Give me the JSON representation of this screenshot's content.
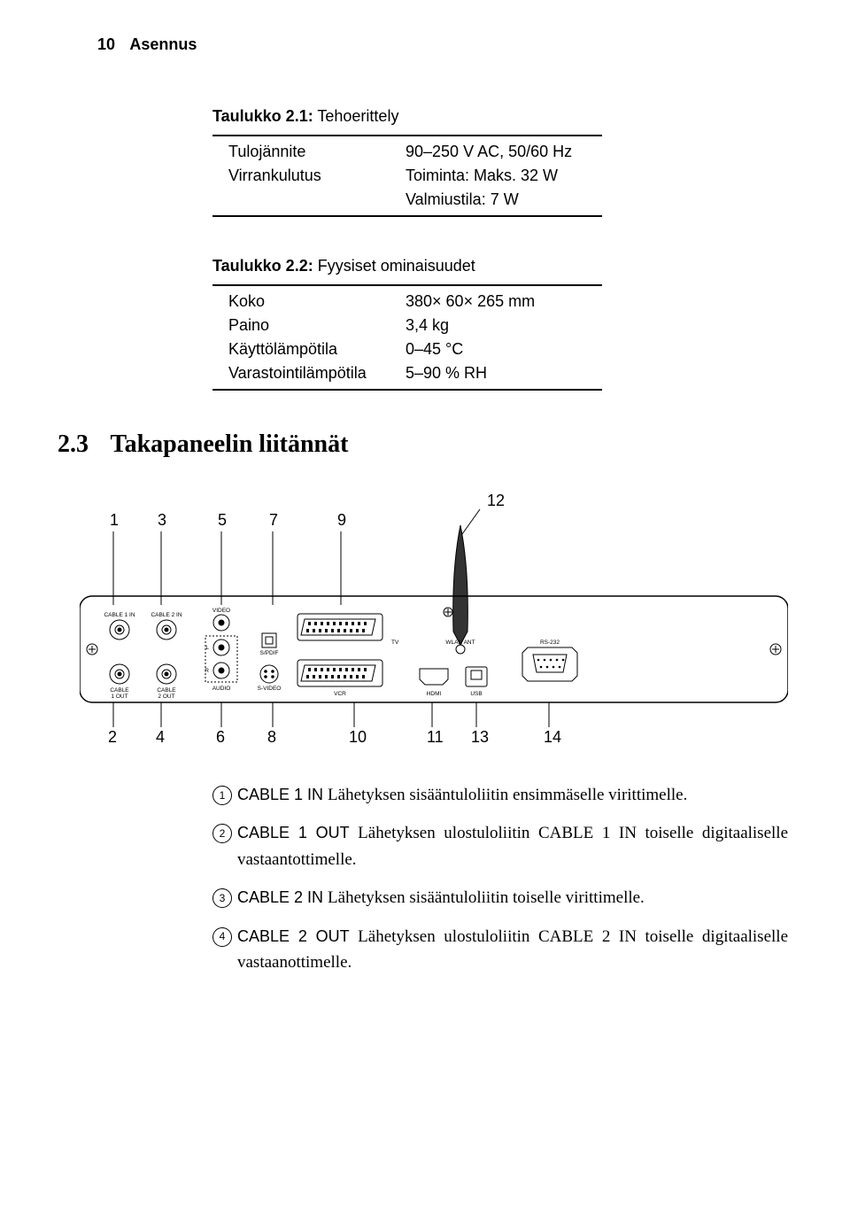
{
  "header": {
    "page_number": "10",
    "title": "Asennus"
  },
  "table1": {
    "caption_label": "Taulukko 2.1:",
    "caption_text": "Tehoerittely",
    "rows": [
      {
        "label": "Tulojännite",
        "value": "90–250 V AC, 50/60 Hz"
      },
      {
        "label": "Virrankulutus",
        "value": "Toiminta: Maks. 32 W"
      },
      {
        "label": "",
        "value": "Valmiustila: 7 W"
      }
    ]
  },
  "table2": {
    "caption_label": "Taulukko 2.2:",
    "caption_text": "Fyysiset ominaisuudet",
    "rows": [
      {
        "label": "Koko",
        "value": "380× 60× 265 mm"
      },
      {
        "label": "Paino",
        "value": "3,4 kg"
      },
      {
        "label": "Käyttölämpötila",
        "value": "0–45 °C"
      },
      {
        "label": "Varastointilämpötila",
        "value": "5–90 % RH"
      }
    ]
  },
  "section": {
    "number": "2.3",
    "title": "Takapaneelin liitännät"
  },
  "diagram": {
    "top_numbers": [
      "1",
      "3",
      "5",
      "7",
      "9"
    ],
    "top_right": "12",
    "bottom_numbers": [
      "2",
      "4",
      "6",
      "8",
      "10",
      "11",
      "13",
      "14"
    ],
    "panel_labels": {
      "cable1in": "CABLE 1 IN",
      "cable2in": "CABLE 2 IN",
      "cable1out": "CABLE\n1 OUT",
      "cable2out": "CABLE\n2 OUT",
      "video": "VIDEO",
      "audio": "AUDIO",
      "spdif": "S/PDIF",
      "svideo": "S-VIDEO",
      "tv": "TV",
      "vcr": "VCR",
      "wlan": "WLAN ANT",
      "hdmi": "HDMI",
      "usb": "USB",
      "rs232": "RS-232",
      "l": "L",
      "r": "R"
    }
  },
  "legend": [
    {
      "num": "1",
      "label": "CABLE 1 IN",
      "text": "Lähetyksen sisääntuloliitin ensimmäselle virittimelle."
    },
    {
      "num": "2",
      "label": "CABLE 1 OUT",
      "text": "Lähetyksen ulostuloliitin CABLE 1 IN toiselle digitaaliselle vastaantottimelle."
    },
    {
      "num": "3",
      "label": "CABLE 2 IN",
      "text": "Lähetyksen sisääntuloliitin toiselle virittimelle."
    },
    {
      "num": "4",
      "label": "CABLE 2 OUT",
      "text": "Lähetyksen ulostuloliitin CABLE 2 IN toiselle digitaaliselle vastaanottimelle."
    }
  ]
}
